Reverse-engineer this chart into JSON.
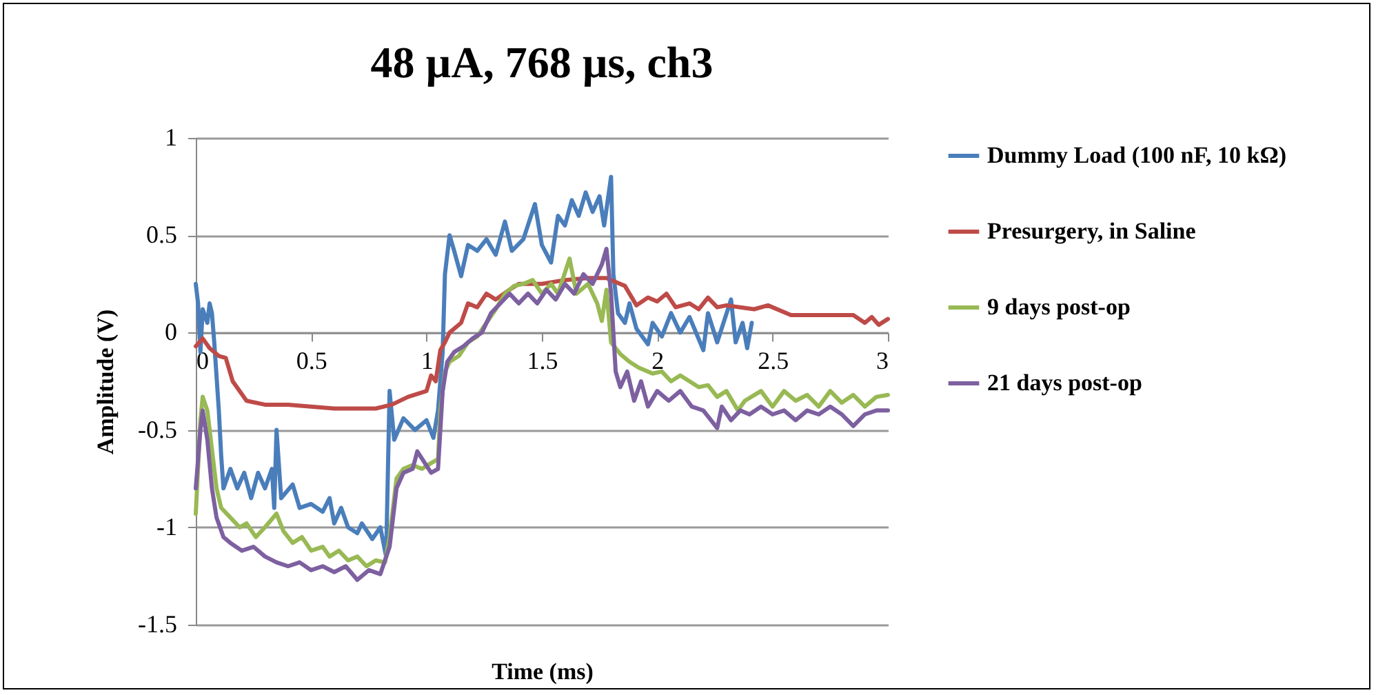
{
  "chart_data": {
    "type": "line",
    "title": "48 µA, 768 µs, ch3",
    "xlabel": "Time (ms)",
    "ylabel": "Amplitude (V)",
    "xlim": [
      0,
      3
    ],
    "ylim": [
      -1.5,
      1
    ],
    "xticks": [
      0,
      0.5,
      1,
      1.5,
      2,
      2.5,
      3
    ],
    "yticks": [
      -1.5,
      -1,
      -0.5,
      0,
      0.5,
      1
    ],
    "grid": "y",
    "legend": "right",
    "series": [
      {
        "name": "Dummy Load (100 nF, 10 kΩ)",
        "color": "#4a7ebb",
        "x": [
          0.0,
          0.01,
          0.02,
          0.03,
          0.05,
          0.06,
          0.07,
          0.08,
          0.1,
          0.11,
          0.12,
          0.15,
          0.18,
          0.21,
          0.24,
          0.27,
          0.3,
          0.33,
          0.34,
          0.35,
          0.37,
          0.42,
          0.45,
          0.5,
          0.55,
          0.58,
          0.6,
          0.63,
          0.66,
          0.7,
          0.72,
          0.765,
          0.8,
          0.825,
          0.84,
          0.86,
          0.9,
          0.95,
          1.0,
          1.03,
          1.05,
          1.07,
          1.08,
          1.1,
          1.12,
          1.15,
          1.18,
          1.22,
          1.26,
          1.3,
          1.34,
          1.37,
          1.42,
          1.47,
          1.5,
          1.54,
          1.57,
          1.6,
          1.63,
          1.66,
          1.69,
          1.72,
          1.75,
          1.77,
          1.8,
          1.81,
          1.83,
          1.86,
          1.88,
          1.91,
          1.96,
          1.98,
          2.02,
          2.06,
          2.1,
          2.14,
          2.2,
          2.22,
          2.26,
          2.32,
          2.34,
          2.37,
          2.39,
          2.41
        ],
        "values": [
          0.25,
          0.15,
          -0.1,
          0.12,
          0.05,
          0.15,
          0.1,
          -0.05,
          -0.4,
          -0.63,
          -0.8,
          -0.7,
          -0.8,
          -0.72,
          -0.85,
          -0.72,
          -0.8,
          -0.7,
          -0.9,
          -0.5,
          -0.85,
          -0.78,
          -0.9,
          -0.88,
          -0.92,
          -0.85,
          -0.98,
          -0.9,
          -1.0,
          -1.03,
          -0.98,
          -1.06,
          -1.0,
          -1.15,
          -0.3,
          -0.55,
          -0.44,
          -0.5,
          -0.45,
          -0.54,
          -0.4,
          -0.1,
          0.3,
          0.5,
          0.42,
          0.29,
          0.45,
          0.42,
          0.48,
          0.4,
          0.57,
          0.42,
          0.48,
          0.66,
          0.45,
          0.36,
          0.6,
          0.55,
          0.68,
          0.6,
          0.72,
          0.62,
          0.7,
          0.55,
          0.8,
          0.3,
          0.1,
          0.05,
          0.15,
          0.02,
          -0.06,
          0.05,
          -0.02,
          0.1,
          0.0,
          0.08,
          -0.09,
          0.1,
          -0.05,
          0.17,
          -0.05,
          0.05,
          -0.08,
          0.05
        ]
      },
      {
        "name": "Presurgery, in Saline",
        "color": "#be4b48",
        "x": [
          0.0,
          0.03,
          0.06,
          0.1,
          0.13,
          0.16,
          0.22,
          0.3,
          0.4,
          0.5,
          0.6,
          0.7,
          0.78,
          0.85,
          0.92,
          1.0,
          1.02,
          1.04,
          1.06,
          1.08,
          1.1,
          1.15,
          1.18,
          1.22,
          1.26,
          1.3,
          1.36,
          1.4,
          1.5,
          1.6,
          1.7,
          1.78,
          1.82,
          1.86,
          1.91,
          1.96,
          2.0,
          2.04,
          2.08,
          2.14,
          2.18,
          2.22,
          2.26,
          2.3,
          2.36,
          2.42,
          2.48,
          2.58,
          2.7,
          2.85,
          2.9,
          2.93,
          2.96,
          3.0
        ],
        "values": [
          -0.07,
          -0.03,
          -0.08,
          -0.12,
          -0.13,
          -0.25,
          -0.35,
          -0.37,
          -0.37,
          -0.38,
          -0.39,
          -0.39,
          -0.39,
          -0.37,
          -0.33,
          -0.3,
          -0.22,
          -0.25,
          -0.09,
          -0.05,
          0.0,
          0.05,
          0.15,
          0.13,
          0.2,
          0.17,
          0.22,
          0.25,
          0.25,
          0.27,
          0.28,
          0.28,
          0.26,
          0.24,
          0.14,
          0.18,
          0.16,
          0.2,
          0.13,
          0.15,
          0.12,
          0.18,
          0.13,
          0.14,
          0.13,
          0.12,
          0.14,
          0.09,
          0.09,
          0.09,
          0.05,
          0.08,
          0.04,
          0.07
        ]
      },
      {
        "name": "9 days post-op",
        "color": "#98b954",
        "x": [
          0.0,
          0.02,
          0.03,
          0.05,
          0.07,
          0.09,
          0.11,
          0.15,
          0.19,
          0.22,
          0.26,
          0.3,
          0.35,
          0.38,
          0.42,
          0.46,
          0.5,
          0.55,
          0.58,
          0.62,
          0.66,
          0.7,
          0.74,
          0.78,
          0.82,
          0.84,
          0.87,
          0.9,
          0.94,
          0.98,
          1.02,
          1.05,
          1.06,
          1.08,
          1.1,
          1.14,
          1.18,
          1.22,
          1.26,
          1.3,
          1.34,
          1.38,
          1.42,
          1.46,
          1.5,
          1.54,
          1.57,
          1.62,
          1.65,
          1.7,
          1.74,
          1.76,
          1.78,
          1.8,
          1.84,
          1.88,
          1.92,
          1.98,
          2.02,
          2.06,
          2.1,
          2.18,
          2.22,
          2.26,
          2.3,
          2.35,
          2.38,
          2.45,
          2.5,
          2.55,
          2.6,
          2.65,
          2.7,
          2.75,
          2.8,
          2.85,
          2.9,
          2.95,
          3.0
        ],
        "values": [
          -0.93,
          -0.45,
          -0.33,
          -0.4,
          -0.6,
          -0.8,
          -0.9,
          -0.95,
          -1.0,
          -0.98,
          -1.05,
          -1.0,
          -0.93,
          -1.02,
          -1.08,
          -1.05,
          -1.12,
          -1.1,
          -1.15,
          -1.12,
          -1.17,
          -1.15,
          -1.2,
          -1.17,
          -1.18,
          -1.05,
          -0.75,
          -0.7,
          -0.68,
          -0.7,
          -0.67,
          -0.65,
          -0.4,
          -0.2,
          -0.15,
          -0.12,
          -0.05,
          -0.02,
          0.05,
          0.12,
          0.2,
          0.24,
          0.25,
          0.27,
          0.2,
          0.25,
          0.2,
          0.38,
          0.2,
          0.25,
          0.15,
          0.06,
          0.22,
          -0.05,
          -0.11,
          -0.15,
          -0.18,
          -0.21,
          -0.2,
          -0.25,
          -0.22,
          -0.28,
          -0.27,
          -0.33,
          -0.3,
          -0.4,
          -0.35,
          -0.3,
          -0.38,
          -0.3,
          -0.35,
          -0.32,
          -0.38,
          -0.3,
          -0.36,
          -0.32,
          -0.38,
          -0.33,
          -0.32
        ]
      },
      {
        "name": "21 days post-op",
        "color": "#7d60a0",
        "x": [
          0.0,
          0.02,
          0.03,
          0.05,
          0.07,
          0.09,
          0.12,
          0.15,
          0.2,
          0.25,
          0.3,
          0.35,
          0.4,
          0.45,
          0.5,
          0.55,
          0.6,
          0.65,
          0.7,
          0.75,
          0.8,
          0.84,
          0.87,
          0.9,
          0.94,
          0.96,
          1.02,
          1.05,
          1.07,
          1.09,
          1.12,
          1.16,
          1.2,
          1.24,
          1.28,
          1.32,
          1.36,
          1.4,
          1.44,
          1.48,
          1.52,
          1.56,
          1.6,
          1.64,
          1.68,
          1.72,
          1.76,
          1.78,
          1.8,
          1.82,
          1.84,
          1.87,
          1.9,
          1.93,
          1.96,
          2.0,
          2.05,
          2.1,
          2.15,
          2.2,
          2.26,
          2.28,
          2.32,
          2.36,
          2.4,
          2.45,
          2.5,
          2.55,
          2.6,
          2.65,
          2.7,
          2.75,
          2.8,
          2.85,
          2.9,
          2.95,
          3.0
        ],
        "values": [
          -0.8,
          -0.5,
          -0.4,
          -0.55,
          -0.8,
          -0.95,
          -1.05,
          -1.08,
          -1.12,
          -1.1,
          -1.15,
          -1.18,
          -1.2,
          -1.18,
          -1.22,
          -1.2,
          -1.23,
          -1.2,
          -1.27,
          -1.22,
          -1.24,
          -1.1,
          -0.8,
          -0.72,
          -0.7,
          -0.61,
          -0.72,
          -0.7,
          -0.3,
          -0.15,
          -0.1,
          -0.07,
          -0.03,
          0.0,
          0.1,
          0.15,
          0.2,
          0.15,
          0.2,
          0.15,
          0.22,
          0.17,
          0.25,
          0.2,
          0.3,
          0.25,
          0.35,
          0.43,
          0.2,
          -0.2,
          -0.28,
          -0.2,
          -0.35,
          -0.25,
          -0.38,
          -0.3,
          -0.35,
          -0.3,
          -0.38,
          -0.4,
          -0.49,
          -0.38,
          -0.45,
          -0.4,
          -0.42,
          -0.38,
          -0.42,
          -0.4,
          -0.45,
          -0.4,
          -0.42,
          -0.38,
          -0.42,
          -0.48,
          -0.42,
          -0.4,
          -0.4
        ]
      }
    ]
  }
}
